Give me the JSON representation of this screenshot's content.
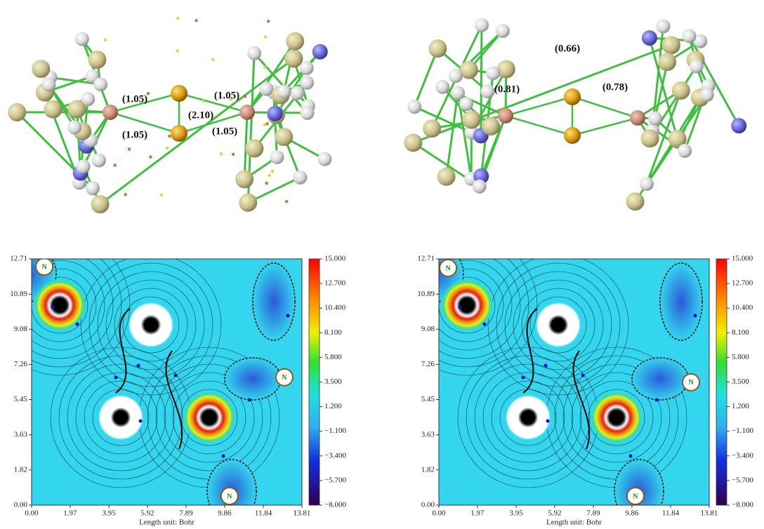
{
  "molecules": [
    {
      "bond_labels": [
        "(1.05)",
        "(1.05)",
        "(2.10)",
        "(1.05)",
        "(1.05)"
      ]
    },
    {
      "bond_labels": [
        "(0.66)",
        "(0.81)",
        "(0.78)"
      ]
    }
  ],
  "chart_data": [
    {
      "type": "contour",
      "xlabel": "Length unit: Bohr",
      "xlim": [
        0,
        13.81
      ],
      "ylim": [
        0,
        12.71
      ],
      "xticks": [
        {
          "value": 0,
          "label": "0.00"
        },
        1.97,
        3.95,
        5.92,
        7.89,
        9.86,
        11.84,
        13.81
      ],
      "yticks": [
        {
          "value": 0,
          "label": "0.00"
        },
        1.82,
        3.63,
        5.45,
        7.26,
        9.08,
        10.89,
        12.71
      ],
      "colorbar": {
        "lim": [
          -8,
          15
        ],
        "ticks": [
          {
            "value": 15,
            "label": "15.000"
          },
          {
            "value": 12.7,
            "label": "12.700"
          },
          {
            "value": 10.4,
            "label": "10.400"
          },
          {
            "value": 8.1,
            "label": "8.100"
          },
          {
            "value": 5.8,
            "label": "5.800"
          },
          {
            "value": 3.5,
            "label": "3.500"
          },
          {
            "value": 1.2,
            "label": "1.200"
          },
          {
            "value": -1.1,
            "label": "−1.100"
          },
          {
            "value": -3.4,
            "label": "−3.400"
          },
          {
            "value": -5.7,
            "label": "−5.700"
          },
          {
            "value": -8,
            "label": "−8.000"
          }
        ]
      },
      "atoms": [
        {
          "label": "N",
          "x": 0.65,
          "y": 12.31
        },
        {
          "label": "N",
          "x": 12.91,
          "y": 6.6
        },
        {
          "label": "N",
          "x": 10.11,
          "y": 0.47
        }
      ]
    },
    {
      "type": "contour",
      "xlabel": "Length unit: Bohr",
      "xlim": [
        0,
        13.81
      ],
      "ylim": [
        0,
        12.71
      ],
      "xticks": [
        {
          "value": 0,
          "label": "0.00"
        },
        1.97,
        3.95,
        5.92,
        7.89,
        9.86,
        11.84,
        13.81
      ],
      "yticks": [
        {
          "value": 0,
          "label": "0.00"
        },
        1.82,
        3.63,
        5.45,
        7.26,
        9.08,
        10.89,
        12.71
      ],
      "colorbar": {
        "lim": [
          -8,
          15
        ],
        "ticks": [
          {
            "value": 15,
            "label": "15.000"
          },
          {
            "value": 12.7,
            "label": "12.700"
          },
          {
            "value": 10.4,
            "label": "10.400"
          },
          {
            "value": 8.1,
            "label": "8.100"
          },
          {
            "value": 5.8,
            "label": "5.800"
          },
          {
            "value": 3.5,
            "label": "3.500"
          },
          {
            "value": 1.2,
            "label": "1.200"
          },
          {
            "value": -1.1,
            "label": "−1.100"
          },
          {
            "value": -3.4,
            "label": "−3.400"
          },
          {
            "value": -5.7,
            "label": "−5.700"
          },
          {
            "value": -8,
            "label": "−8.000"
          }
        ]
      },
      "atoms": [
        {
          "label": "N",
          "x": 0.47,
          "y": 12.24
        },
        {
          "label": "N",
          "x": 12.88,
          "y": 6.34
        },
        {
          "label": "N",
          "x": 10.04,
          "y": 0.47
        }
      ]
    }
  ]
}
